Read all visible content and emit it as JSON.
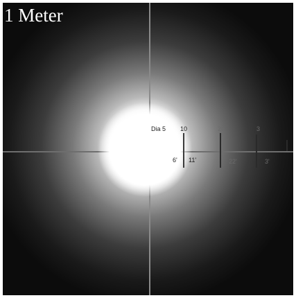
{
  "caption": "1 Meter",
  "scale": {
    "upper_labels": [
      "Dia 5",
      "10",
      "20",
      "3"
    ],
    "lower_labels": [
      "6'",
      "11'",
      "22'",
      "3'"
    ]
  },
  "colors": {
    "background": "#0d0d0d",
    "hotspot": "#ffffff",
    "crosshair": "#8a8a8a",
    "caption_text": "#ffffff",
    "frame": "#ffffff"
  }
}
